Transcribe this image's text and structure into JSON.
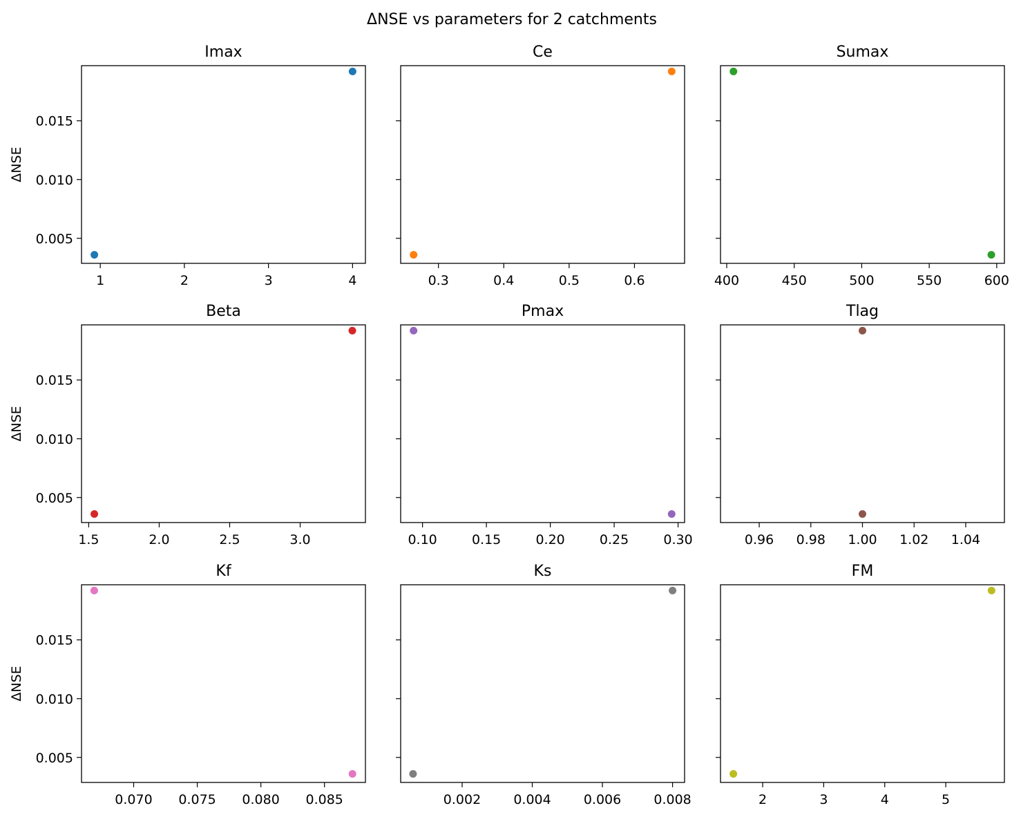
{
  "figure": {
    "title": "ΔNSE vs parameters for 2 catchments",
    "ylabel": "ΔNSE",
    "shared_ylim": [
      0.00287,
      0.01969
    ],
    "shared_yticks": [
      "0.005",
      "0.010",
      "0.015"
    ]
  },
  "chart_data": [
    {
      "type": "scatter",
      "title": "Imax",
      "x": [
        0.93,
        4.0
      ],
      "y": [
        0.0036,
        0.0192
      ],
      "xlim": [
        0.777,
        4.153
      ],
      "xticks": [
        1,
        2,
        3,
        4
      ],
      "xtick_labels": [
        "1",
        "2",
        "3",
        "4"
      ],
      "color": "#1f77b4",
      "ylabel": "ΔNSE"
    },
    {
      "type": "scatter",
      "title": "Ce",
      "x": [
        0.262,
        0.657
      ],
      "y": [
        0.0036,
        0.0192
      ],
      "xlim": [
        0.2422,
        0.6767
      ],
      "xticks": [
        0.3,
        0.4,
        0.5,
        0.6
      ],
      "xtick_labels": [
        "0.3",
        "0.4",
        "0.5",
        "0.6"
      ],
      "color": "#ff7f0e",
      "ylabel": ""
    },
    {
      "type": "scatter",
      "title": "Sumax",
      "x": [
        405,
        596
      ],
      "y": [
        0.0192,
        0.0036
      ],
      "xlim": [
        395.4,
        605.7
      ],
      "xticks": [
        400,
        450,
        500,
        550,
        600
      ],
      "xtick_labels": [
        "400",
        "450",
        "500",
        "550",
        "600"
      ],
      "color": "#2ca02c",
      "ylabel": ""
    },
    {
      "type": "scatter",
      "title": "Beta",
      "x": [
        1.54,
        3.37
      ],
      "y": [
        0.0036,
        0.0192
      ],
      "xlim": [
        1.449,
        3.463
      ],
      "xticks": [
        1.5,
        2.0,
        2.5,
        3.0
      ],
      "xtick_labels": [
        "1.5",
        "2.0",
        "2.5",
        "3.0"
      ],
      "color": "#d62728",
      "ylabel": "ΔNSE"
    },
    {
      "type": "scatter",
      "title": "Pmax",
      "x": [
        0.093,
        0.295
      ],
      "y": [
        0.0192,
        0.0036
      ],
      "xlim": [
        0.0829,
        0.3051
      ],
      "xticks": [
        0.1,
        0.15,
        0.2,
        0.25,
        0.3
      ],
      "xtick_labels": [
        "0.10",
        "0.15",
        "0.20",
        "0.25",
        "0.30"
      ],
      "color": "#9467bd",
      "ylabel": ""
    },
    {
      "type": "scatter",
      "title": "Tlag",
      "x": [
        1.0,
        1.0
      ],
      "y": [
        0.0192,
        0.0036
      ],
      "xlim": [
        0.945,
        1.055
      ],
      "xticks": [
        0.96,
        0.98,
        1.0,
        1.02,
        1.04
      ],
      "xtick_labels": [
        "0.96",
        "0.98",
        "1.00",
        "1.02",
        "1.04"
      ],
      "color": "#8c564b",
      "ylabel": ""
    },
    {
      "type": "scatter",
      "title": "Kf",
      "x": [
        0.0669,
        0.0872
      ],
      "y": [
        0.0192,
        0.0036
      ],
      "xlim": [
        0.0659,
        0.08822
      ],
      "xticks": [
        0.07,
        0.075,
        0.08,
        0.085
      ],
      "xtick_labels": [
        "0.070",
        "0.075",
        "0.080",
        "0.085"
      ],
      "color": "#e377c2",
      "ylabel": "ΔNSE"
    },
    {
      "type": "scatter",
      "title": "Ks",
      "x": [
        0.0006,
        0.008
      ],
      "y": [
        0.0036,
        0.0192
      ],
      "xlim": [
        0.000247,
        0.008343
      ],
      "xticks": [
        0.002,
        0.004,
        0.006,
        0.008
      ],
      "xtick_labels": [
        "0.002",
        "0.004",
        "0.006",
        "0.008"
      ],
      "color": "#7f7f7f",
      "ylabel": ""
    },
    {
      "type": "scatter",
      "title": "FM",
      "x": [
        1.52,
        5.75
      ],
      "y": [
        0.0036,
        0.0192
      ],
      "xlim": [
        1.309,
        5.961
      ],
      "xticks": [
        2,
        3,
        4,
        5
      ],
      "xtick_labels": [
        "2",
        "3",
        "4",
        "5"
      ],
      "color": "#bcbd22",
      "ylabel": ""
    }
  ]
}
